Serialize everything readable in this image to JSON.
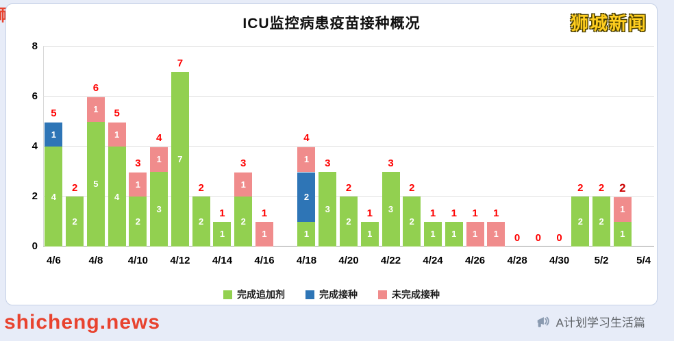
{
  "watermarks": {
    "top_right": "狮城新闻",
    "bottom_left": "shicheng.news",
    "bottom_right": "A计划学习生活篇",
    "left_edge_fragment": "狮"
  },
  "chart_data": {
    "type": "bar",
    "stacked": true,
    "title": "ICU监控病患疫苗接种概况",
    "ylim": [
      0,
      8
    ],
    "yticks": [
      0,
      2,
      4,
      6,
      8
    ],
    "grid": "horizontal",
    "legend_position": "bottom",
    "total_label_color": "#fe0000",
    "colors": {
      "booster": "#92d050",
      "vaccinated": "#2e75b6",
      "not_completed": "#f08c8c"
    },
    "legend": [
      {
        "key": "booster",
        "label": "完成追加剂"
      },
      {
        "key": "vaccinated",
        "label": "完成接种"
      },
      {
        "key": "not_completed",
        "label": "未完成接种"
      }
    ],
    "xtick_labels": [
      "4/6",
      "4/8",
      "4/10",
      "4/12",
      "4/14",
      "4/16",
      "4/18",
      "4/20",
      "4/22",
      "4/24",
      "4/26",
      "4/28",
      "4/30",
      "5/2",
      "5/4"
    ],
    "bars": [
      {
        "date": "4/6",
        "segments": [
          {
            "key": "booster",
            "value": 4
          },
          {
            "key": "vaccinated",
            "value": 1
          }
        ],
        "total": 5
      },
      {
        "date": "4/7",
        "segments": [
          {
            "key": "booster",
            "value": 2
          }
        ],
        "total": 2
      },
      {
        "date": "4/8",
        "segments": [
          {
            "key": "booster",
            "value": 5
          },
          {
            "key": "not_completed",
            "value": 1
          }
        ],
        "total": 6
      },
      {
        "date": "4/9",
        "segments": [
          {
            "key": "booster",
            "value": 4
          },
          {
            "key": "not_completed",
            "value": 1
          }
        ],
        "total": 5
      },
      {
        "date": "4/10",
        "segments": [
          {
            "key": "booster",
            "value": 2
          },
          {
            "key": "not_completed",
            "value": 1
          }
        ],
        "total": 3
      },
      {
        "date": "4/11",
        "segments": [
          {
            "key": "booster",
            "value": 3
          },
          {
            "key": "not_completed",
            "value": 1
          }
        ],
        "total": 4
      },
      {
        "date": "4/12",
        "segments": [
          {
            "key": "booster",
            "value": 7
          }
        ],
        "total": 7
      },
      {
        "date": "4/13",
        "segments": [
          {
            "key": "booster",
            "value": 2
          }
        ],
        "total": 2
      },
      {
        "date": "4/14",
        "segments": [
          {
            "key": "booster",
            "value": 1
          }
        ],
        "total": 1
      },
      {
        "date": "4/15",
        "segments": [
          {
            "key": "booster",
            "value": 2
          },
          {
            "key": "not_completed",
            "value": 1
          }
        ],
        "total": 3
      },
      {
        "date": "4/16",
        "segments": [
          {
            "key": "not_completed",
            "value": 1
          }
        ],
        "total": 1
      },
      {
        "date": "4/17",
        "segments": [],
        "total": null
      },
      {
        "date": "4/18",
        "segments": [
          {
            "key": "booster",
            "value": 1
          },
          {
            "key": "vaccinated",
            "value": 2
          },
          {
            "key": "not_completed",
            "value": 1
          }
        ],
        "total": 4
      },
      {
        "date": "4/19",
        "segments": [
          {
            "key": "booster",
            "value": 3
          }
        ],
        "total": 3
      },
      {
        "date": "4/20",
        "segments": [
          {
            "key": "booster",
            "value": 2
          }
        ],
        "total": 2
      },
      {
        "date": "4/21",
        "segments": [
          {
            "key": "booster",
            "value": 1
          }
        ],
        "total": 1
      },
      {
        "date": "4/22",
        "segments": [
          {
            "key": "booster",
            "value": 3
          }
        ],
        "total": 3
      },
      {
        "date": "4/23",
        "segments": [
          {
            "key": "booster",
            "value": 2
          }
        ],
        "total": 2
      },
      {
        "date": "4/24",
        "segments": [
          {
            "key": "booster",
            "value": 1
          }
        ],
        "total": 1
      },
      {
        "date": "4/25",
        "segments": [
          {
            "key": "booster",
            "value": 1
          }
        ],
        "total": 1
      },
      {
        "date": "4/26",
        "segments": [
          {
            "key": "not_completed",
            "value": 1
          }
        ],
        "total": 1
      },
      {
        "date": "4/27",
        "segments": [
          {
            "key": "not_completed",
            "value": 1
          }
        ],
        "total": 1
      },
      {
        "date": "4/28",
        "segments": [],
        "total": 0
      },
      {
        "date": "4/29",
        "segments": [],
        "total": 0
      },
      {
        "date": "4/30",
        "segments": [],
        "total": 0
      },
      {
        "date": "5/1",
        "segments": [
          {
            "key": "booster",
            "value": 2
          }
        ],
        "total": 2
      },
      {
        "date": "5/2",
        "segments": [
          {
            "key": "booster",
            "value": 2
          }
        ],
        "total": 2
      },
      {
        "date": "5/3",
        "segments": [
          {
            "key": "booster",
            "value": 1
          },
          {
            "key": "not_completed",
            "value": 1
          }
        ],
        "total": 2,
        "emphasis": true
      },
      {
        "date": "5/4",
        "segments": [],
        "total": null
      }
    ]
  }
}
